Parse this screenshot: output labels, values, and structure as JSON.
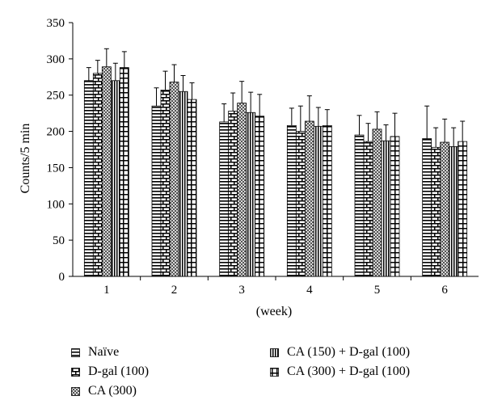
{
  "chart_data": {
    "type": "bar",
    "categories": [
      "1",
      "2",
      "3",
      "4",
      "5",
      "6"
    ],
    "xlabel": "(week)",
    "ylabel": "Counts/5 min",
    "ylim": [
      0,
      350
    ],
    "yticks": [
      0,
      50,
      100,
      150,
      200,
      250,
      300,
      350
    ],
    "grid": false,
    "legend_position": "bottom",
    "series": [
      {
        "name": "Naïve",
        "pattern": "horizontal-lines",
        "values": [
          270,
          235,
          213,
          208,
          195,
          190
        ],
        "errors": [
          18,
          25,
          25,
          24,
          27,
          45
        ]
      },
      {
        "name": "D-gal (100)",
        "pattern": "brick",
        "values": [
          280,
          257,
          228,
          200,
          186,
          178
        ],
        "errors": [
          18,
          26,
          25,
          35,
          25,
          27
        ]
      },
      {
        "name": "CA (300)",
        "pattern": "checker",
        "values": [
          289,
          268,
          239,
          214,
          203,
          185
        ],
        "errors": [
          25,
          24,
          30,
          35,
          24,
          32
        ]
      },
      {
        "name": "CA (150) + D-gal (100)",
        "pattern": "vertical-lines",
        "values": [
          270,
          255,
          226,
          207,
          187,
          179
        ],
        "errors": [
          24,
          22,
          28,
          26,
          22,
          26
        ]
      },
      {
        "name": "CA (300) + D-gal (100)",
        "pattern": "grid-cross",
        "values": [
          288,
          244,
          221,
          208,
          193,
          186
        ],
        "errors": [
          22,
          23,
          30,
          22,
          32,
          28
        ]
      }
    ]
  },
  "legend": {
    "items": [
      {
        "label": "Naïve",
        "pattern": "horizontal-lines"
      },
      {
        "label": "D-gal (100)",
        "pattern": "brick"
      },
      {
        "label": "CA (300)",
        "pattern": "checker"
      },
      {
        "label": "CA (150) + D-gal (100)",
        "pattern": "vertical-lines"
      },
      {
        "label": "CA (300) + D-gal (100)",
        "pattern": "grid-cross"
      }
    ]
  }
}
